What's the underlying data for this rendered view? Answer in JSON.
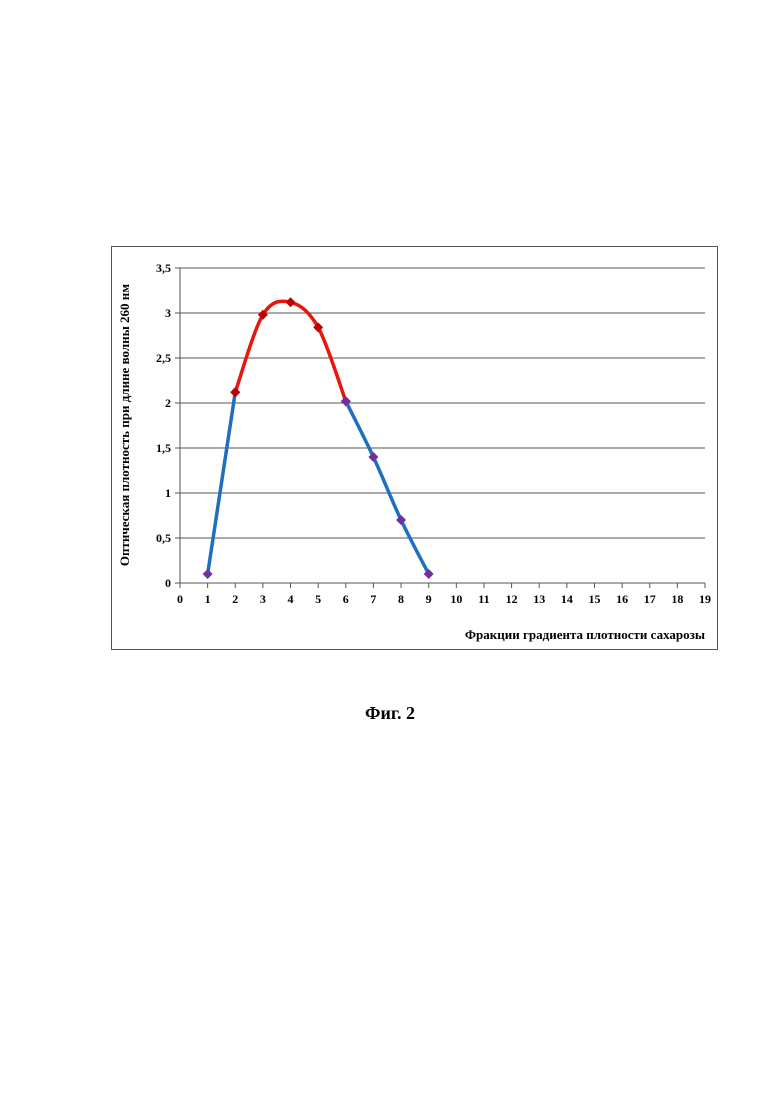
{
  "figure": {
    "caption": "Фиг. 2"
  },
  "chart_data": {
    "type": "line",
    "title": "",
    "xlabel": "Фракции градиента плотности сахарозы",
    "ylabel": "Оптическая плотность при длине волны 260 нм",
    "xlim": [
      0,
      19
    ],
    "ylim": [
      0,
      3.5
    ],
    "x_ticks": [
      "0",
      "1",
      "2",
      "3",
      "4",
      "5",
      "6",
      "7",
      "8",
      "9",
      "10",
      "11",
      "12",
      "13",
      "14",
      "15",
      "16",
      "17",
      "18",
      "19"
    ],
    "y_ticks": [
      "0",
      "0,5",
      "1",
      "1,5",
      "2",
      "2,5",
      "3",
      "3,5"
    ],
    "grid": true,
    "legend": "none",
    "series": [
      {
        "points": [
          [
            1,
            0.1
          ],
          [
            2,
            2.12
          ]
        ],
        "line_color": "#1F6FBF",
        "marker_color": "#7030A0"
      },
      {
        "points": [
          [
            2,
            2.12
          ],
          [
            3,
            2.98
          ],
          [
            4,
            3.12
          ],
          [
            5,
            2.84
          ],
          [
            6,
            2.02
          ]
        ],
        "line_color": "#E8160C",
        "marker_color": "#C00000"
      },
      {
        "points": [
          [
            6,
            2.02
          ],
          [
            7,
            1.4
          ],
          [
            8,
            0.7
          ],
          [
            9,
            0.1
          ]
        ],
        "line_color": "#1F6FBF",
        "marker_color": "#7030A0"
      }
    ]
  }
}
